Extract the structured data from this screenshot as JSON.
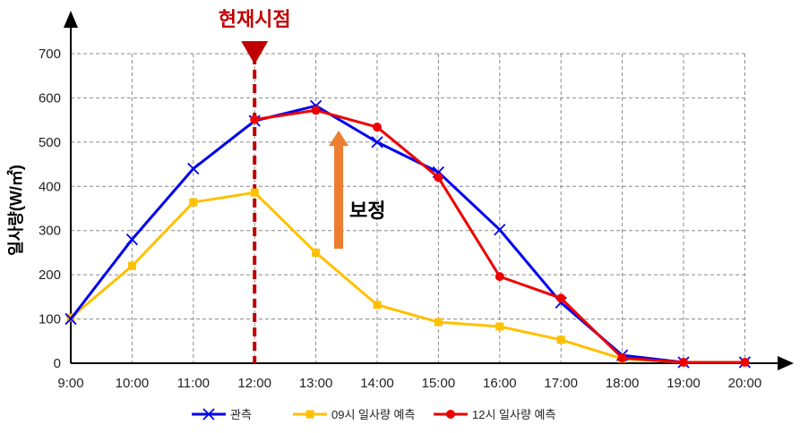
{
  "chart_data": {
    "type": "line",
    "categories": [
      "9:00",
      "10:00",
      "11:00",
      "12:00",
      "13:00",
      "14:00",
      "15:00",
      "16:00",
      "17:00",
      "18:00",
      "19:00",
      "20:00"
    ],
    "ylabel": "일사량(W/㎡)",
    "ylim": [
      0,
      700
    ],
    "yticks": [
      0,
      100,
      200,
      300,
      400,
      500,
      600,
      700
    ],
    "grid": true,
    "legend_position": "bottom",
    "series": [
      {
        "name": "관측",
        "color": "#0000ee",
        "marker": "x",
        "values": [
          100,
          280,
          440,
          548,
          582,
          500,
          432,
          302,
          137,
          18,
          2,
          2
        ]
      },
      {
        "name": "09시 일사량 예측",
        "color": "#ffc000",
        "marker": "square",
        "values": [
          103,
          220,
          364,
          386,
          250,
          132,
          93,
          83,
          53,
          10,
          2,
          2
        ]
      },
      {
        "name": "12시 일사량 예측",
        "color": "#ee0000",
        "marker": "circle",
        "values": [
          null,
          null,
          null,
          551,
          572,
          534,
          420,
          196,
          147,
          12,
          2,
          2
        ]
      }
    ],
    "annotations": {
      "current_time_label": "현재시점",
      "current_time_at": "12:00",
      "current_time_color": "#c00000",
      "correction_label": "보정",
      "correction_arrow_color": "#ed7d31"
    }
  }
}
